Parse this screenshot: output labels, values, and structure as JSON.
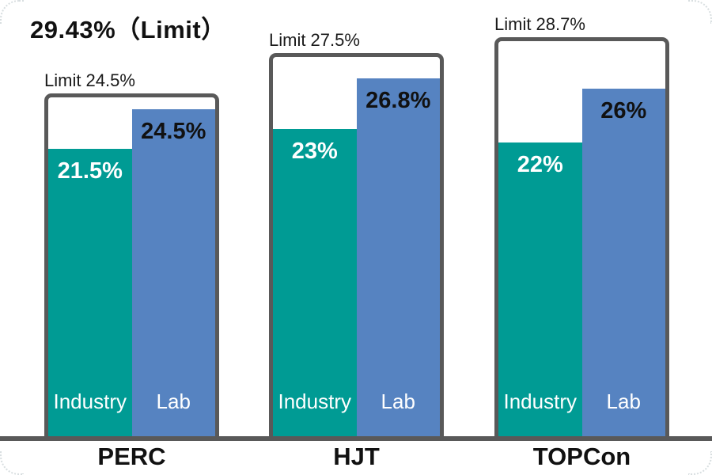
{
  "title": "29.43%（Limit）",
  "chart_data": {
    "type": "bar",
    "title": "29.43%（Limit）",
    "unit": "%",
    "ylim": [
      0,
      29.43
    ],
    "theoretical_limit": 29.43,
    "grid": false,
    "legend_position": "inside-bars",
    "categories": [
      "PERC",
      "HJT",
      "TOPCon"
    ],
    "series": [
      {
        "name": "Industry",
        "values": [
          21.5,
          23,
          22
        ]
      },
      {
        "name": "Lab",
        "values": [
          24.5,
          26.8,
          26
        ]
      }
    ],
    "limits": [
      24.5,
      27.5,
      28.7
    ],
    "groups": [
      {
        "name": "PERC",
        "limit": 24.5,
        "limit_label": "Limit 24.5%",
        "bars": [
          {
            "series": "Industry",
            "value": 21.5,
            "label": "21.5%"
          },
          {
            "series": "Lab",
            "value": 24.5,
            "label": "24.5%"
          }
        ]
      },
      {
        "name": "HJT",
        "limit": 27.5,
        "limit_label": "Limit 27.5%",
        "bars": [
          {
            "series": "Industry",
            "value": 23,
            "label": "23%"
          },
          {
            "series": "Lab",
            "value": 26.8,
            "label": "26.8%"
          }
        ]
      },
      {
        "name": "TOPCon",
        "limit": 28.7,
        "limit_label": "Limit 28.7%",
        "bars": [
          {
            "series": "Industry",
            "value": 22,
            "label": "22%"
          },
          {
            "series": "Lab",
            "value": 26,
            "label": "26%"
          }
        ]
      }
    ]
  },
  "colors": {
    "industry": "#009b94",
    "lab": "#5683c1",
    "outline": "#595959",
    "baseline": "#595959",
    "title_text": "#111111",
    "value_on_industry": "#ffffff",
    "value_on_lab": "#111111",
    "limit_box_fill": "#ffffff"
  }
}
